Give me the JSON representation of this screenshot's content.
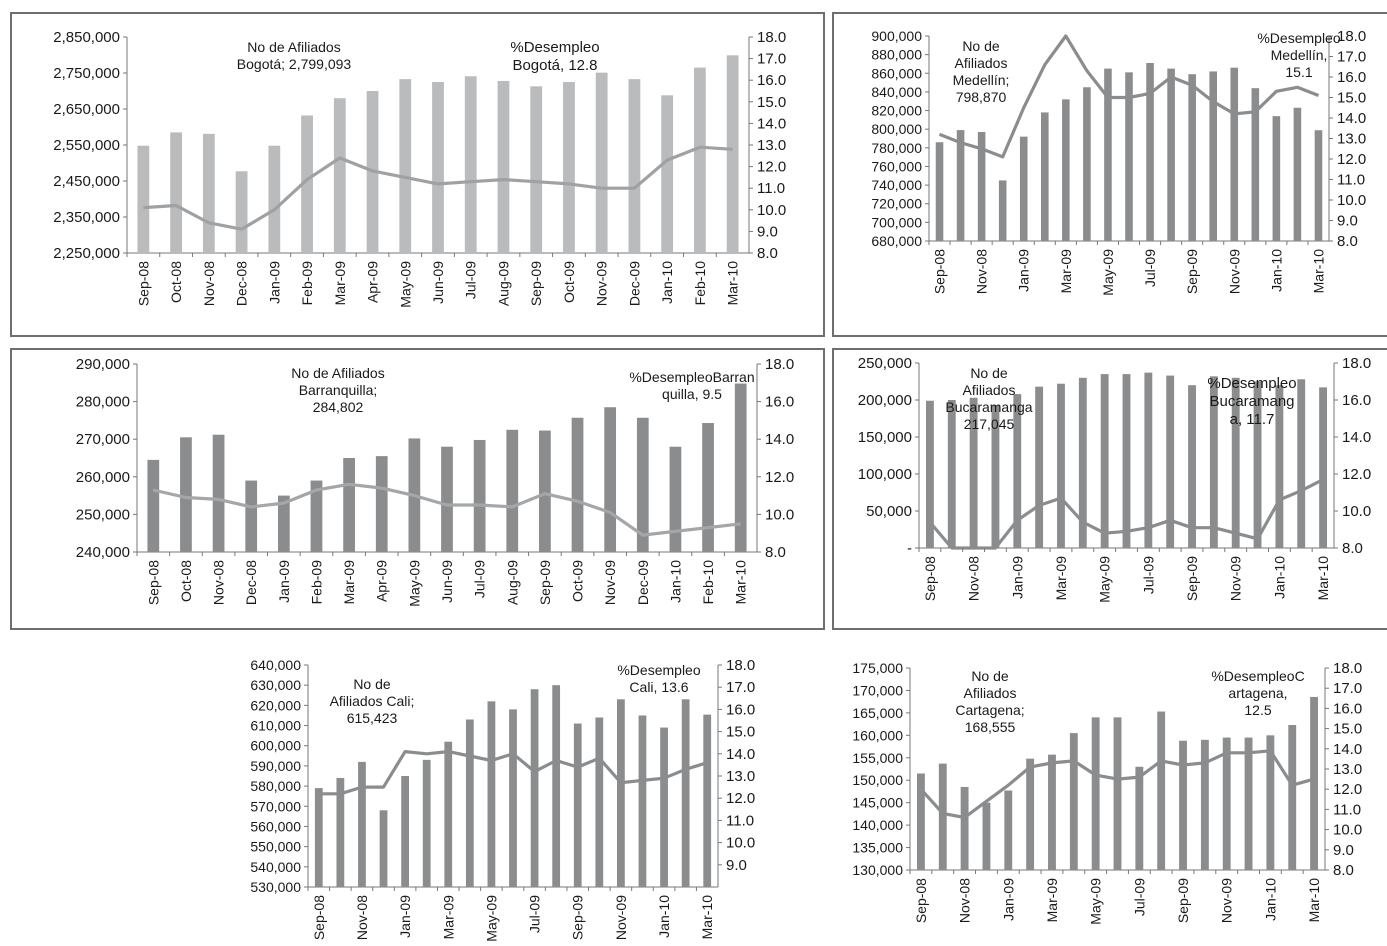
{
  "chart_data": [
    {
      "type": "bar+line",
      "categories": [
        "Sep-08",
        "Oct-08",
        "Nov-08",
        "Dec-08",
        "Jan-09",
        "Feb-09",
        "Mar-09",
        "Apr-09",
        "May-09",
        "Jun-09",
        "Jul-09",
        "Aug-09",
        "Sep-09",
        "Oct-09",
        "Nov-09",
        "Dec-09",
        "Jan-10",
        "Feb-10",
        "Mar-10"
      ],
      "series": [
        {
          "axis": "left",
          "values": [
            2548000,
            2585000,
            2581000,
            2477000,
            2548000,
            2632000,
            2680000,
            2700000,
            2733000,
            2725000,
            2741000,
            2728000,
            2713000,
            2725000,
            2751000,
            2733000,
            2688000,
            2765000,
            2799093
          ]
        },
        {
          "axis": "right",
          "values": [
            10.1,
            10.2,
            9.4,
            9.1,
            10.0,
            11.4,
            12.4,
            11.8,
            11.5,
            11.2,
            11.3,
            11.4,
            11.3,
            11.2,
            11.0,
            11.0,
            12.3,
            12.9,
            12.8
          ]
        }
      ],
      "ylim": [
        2250000,
        2850000
      ],
      "y2lim": [
        8.0,
        18.0
      ],
      "yticks": [
        "2,850,000",
        "2,750,000",
        "2,650,000",
        "2,550,000",
        "2,450,000",
        "2,350,000",
        "2,250,000"
      ],
      "y2ticks": [
        "18.0",
        "17.0",
        "16.0",
        "15.0",
        "14.0",
        "13.0",
        "12.0",
        "11.0",
        "10.0",
        "9.0",
        "8.0"
      ],
      "annotations": [
        {
          "lines": [
            "No de Afiliados",
            "Bogotá;  2,799,093"
          ]
        },
        {
          "lines": [
            "%Desempleo",
            "Bogotá,  12.8"
          ]
        }
      ],
      "bar_color": "#b9bbbd",
      "line_color": "#9fa1a3"
    },
    {
      "type": "bar+line",
      "categories": [
        "Sep-08",
        "Oct-08",
        "Nov-08",
        "Dec-08",
        "Jan-09",
        "Feb-09",
        "Mar-09",
        "Apr-09",
        "May-09",
        "Jun-09",
        "Jul-09",
        "Aug-09",
        "Sep-09",
        "Oct-09",
        "Nov-09",
        "Dec-09",
        "Jan-10",
        "Feb-10",
        "Mar-10"
      ],
      "tick_labels_every": 2,
      "series": [
        {
          "axis": "left",
          "values": [
            786000,
            799000,
            797000,
            745000,
            792000,
            818000,
            832000,
            845000,
            865000,
            861000,
            871000,
            865000,
            859000,
            862000,
            866000,
            844000,
            814000,
            823000,
            798870
          ]
        },
        {
          "axis": "right",
          "values": [
            13.2,
            12.8,
            12.5,
            12.1,
            14.5,
            16.6,
            18.0,
            16.3,
            15.0,
            15.0,
            15.2,
            16.0,
            15.6,
            14.8,
            14.2,
            14.3,
            15.3,
            15.5,
            15.1
          ]
        }
      ],
      "ylim": [
        680000,
        900000
      ],
      "y2lim": [
        8.0,
        18.0
      ],
      "yticks": [
        "900,000",
        "880,000",
        "860,000",
        "840,000",
        "820,000",
        "800,000",
        "780,000",
        "760,000",
        "740,000",
        "720,000",
        "700,000",
        "680,000"
      ],
      "y2ticks": [
        "18.0",
        "17.0",
        "16.0",
        "15.0",
        "14.0",
        "13.0",
        "12.0",
        "11.0",
        "10.0",
        "9.0",
        "8.0"
      ],
      "annotations": [
        {
          "lines": [
            "No de",
            "Afiliados",
            "Medellín;",
            "798,870"
          ]
        },
        {
          "lines": [
            "%Desempleo",
            "Medellín,",
            "15.1"
          ]
        }
      ],
      "bar_color": "#8a8c8e",
      "line_color": "#8a8c8e"
    },
    {
      "type": "bar+line",
      "categories": [
        "Sep-08",
        "Oct-08",
        "Nov-08",
        "Dec-08",
        "Jan-09",
        "Feb-09",
        "Mar-09",
        "Apr-09",
        "May-09",
        "Jun-09",
        "Jul-09",
        "Aug-09",
        "Sep-09",
        "Oct-09",
        "Nov-09",
        "Dec-09",
        "Jan-10",
        "Feb-10",
        "Mar-10"
      ],
      "series": [
        {
          "axis": "left",
          "values": [
            264500,
            270500,
            271200,
            259000,
            255000,
            259000,
            265000,
            265500,
            270200,
            268000,
            269800,
            272500,
            272300,
            275700,
            278500,
            275700,
            268000,
            274300,
            284802
          ]
        },
        {
          "axis": "right",
          "values": [
            11.3,
            10.9,
            10.8,
            10.4,
            10.6,
            11.3,
            11.6,
            11.4,
            11.0,
            10.5,
            10.5,
            10.4,
            11.1,
            10.7,
            10.1,
            8.9,
            9.1,
            9.3,
            9.5
          ]
        }
      ],
      "ylim": [
        240000,
        290000
      ],
      "y2lim": [
        8.0,
        18.0
      ],
      "yticks": [
        "290,000",
        "280,000",
        "270,000",
        "260,000",
        "250,000",
        "240,000"
      ],
      "y2ticks": [
        "18.0",
        "16.0",
        "14.0",
        "12.0",
        "10.0",
        "8.0"
      ],
      "annotations": [
        {
          "lines": [
            "No de Afiliados",
            "Barranquilla;",
            "284,802"
          ]
        },
        {
          "lines": [
            "%DesempleoBarran",
            "quilla,  9.5"
          ]
        }
      ],
      "bar_color": "#8a8c8e",
      "line_color": "#a4a6a8"
    },
    {
      "type": "bar+line",
      "categories": [
        "Sep-08",
        "Oct-08",
        "Nov-08",
        "Dec-08",
        "Jan-09",
        "Feb-09",
        "Mar-09",
        "Apr-09",
        "May-09",
        "Jun-09",
        "Jul-09",
        "Aug-09",
        "Sep-09",
        "Oct-09",
        "Nov-09",
        "Dec-09",
        "Jan-10",
        "Feb-10",
        "Mar-10"
      ],
      "tick_labels_every": 2,
      "series": [
        {
          "axis": "left",
          "values": [
            199000,
            200000,
            203000,
            193000,
            208000,
            218000,
            222000,
            230000,
            235000,
            235000,
            237000,
            233000,
            220000,
            232000,
            230000,
            225000,
            220000,
            228000,
            217045
          ]
        },
        {
          "axis": "right",
          "values": [
            9.4,
            7.9,
            7.9,
            7.9,
            9.5,
            10.3,
            10.7,
            9.4,
            8.8,
            8.9,
            9.1,
            9.5,
            9.1,
            9.1,
            8.8,
            8.5,
            10.6,
            11.1,
            11.7
          ]
        }
      ],
      "ylim": [
        0,
        250000
      ],
      "y2lim": [
        8.0,
        18.0
      ],
      "yticks": [
        "250,000",
        "200,000",
        "150,000",
        "100,000",
        "50,000",
        "-"
      ],
      "y2ticks": [
        "18.0",
        "16.0",
        "14.0",
        "12.0",
        "10.0",
        "8.0"
      ],
      "annotations": [
        {
          "lines": [
            "No de",
            "Afiliados",
            "Bucaramanga",
            "217,045"
          ]
        },
        {
          "lines": [
            "%Desempleo",
            "Bucaramang",
            "a,  11.7"
          ]
        }
      ],
      "bar_color": "#8a8c8e",
      "line_color": "#8a8c8e"
    },
    {
      "type": "bar+line",
      "categories": [
        "Sep-08",
        "Oct-08",
        "Nov-08",
        "Dec-08",
        "Jan-09",
        "Feb-09",
        "Mar-09",
        "Apr-09",
        "May-09",
        "Jun-09",
        "Jul-09",
        "Aug-09",
        "Sep-09",
        "Oct-09",
        "Nov-09",
        "Dec-09",
        "Jan-10",
        "Feb-10",
        "Mar-10"
      ],
      "tick_labels_every": 2,
      "series": [
        {
          "axis": "left",
          "values": [
            579000,
            584000,
            592000,
            568000,
            585000,
            593000,
            602000,
            613000,
            622000,
            618000,
            628000,
            630000,
            611000,
            614000,
            623000,
            615000,
            609000,
            623000,
            615423
          ]
        },
        {
          "axis": "right",
          "values": [
            12.2,
            12.2,
            12.5,
            12.5,
            14.1,
            14.0,
            14.1,
            13.9,
            13.7,
            14.0,
            13.2,
            13.7,
            13.4,
            13.8,
            12.7,
            12.8,
            12.9,
            13.3,
            13.6
          ]
        }
      ],
      "ylim": [
        530000,
        640000
      ],
      "y2lim": [
        8.0,
        18.0
      ],
      "yticks": [
        "640,000",
        "630,000",
        "620,000",
        "610,000",
        "600,000",
        "590,000",
        "580,000",
        "570,000",
        "560,000",
        "550,000",
        "540,000",
        "530,000"
      ],
      "y2ticks": [
        "18.0",
        "17.0",
        "16.0",
        "15.0",
        "14.0",
        "13.0",
        "12.0",
        "11.0",
        "10.0",
        "9.0"
      ],
      "annotations": [
        {
          "lines": [
            "No de",
            "Afiliados Cali;",
            "615,423"
          ]
        },
        {
          "lines": [
            "%Desempleo",
            "Cali,  13.6"
          ]
        }
      ],
      "bar_color": "#8a8c8e",
      "line_color": "#8a8c8e"
    },
    {
      "type": "bar+line",
      "categories": [
        "Sep-08",
        "Oct-08",
        "Nov-08",
        "Dec-08",
        "Jan-09",
        "Feb-09",
        "Mar-09",
        "Apr-09",
        "May-09",
        "Jun-09",
        "Jul-09",
        "Aug-09",
        "Sep-09",
        "Oct-09",
        "Nov-09",
        "Dec-09",
        "Jan-10",
        "Feb-10",
        "Mar-10"
      ],
      "tick_labels_every": 2,
      "series": [
        {
          "axis": "left",
          "values": [
            151500,
            153700,
            148500,
            145000,
            147700,
            154800,
            155700,
            160500,
            164000,
            164000,
            153000,
            165300,
            158800,
            159000,
            159500,
            159500,
            160000,
            162300,
            168555
          ]
        },
        {
          "axis": "right",
          "values": [
            12.0,
            10.8,
            10.6,
            11.4,
            12.2,
            13.1,
            13.3,
            13.4,
            12.7,
            12.5,
            12.6,
            13.4,
            13.2,
            13.3,
            13.8,
            13.8,
            13.9,
            12.2,
            12.5
          ]
        }
      ],
      "ylim": [
        130000,
        175000
      ],
      "y2lim": [
        8.0,
        18.0
      ],
      "yticks": [
        "175,000",
        "170,000",
        "165,000",
        "160,000",
        "155,000",
        "150,000",
        "145,000",
        "140,000",
        "135,000",
        "130,000"
      ],
      "y2ticks": [
        "18.0",
        "17.0",
        "16.0",
        "15.0",
        "14.0",
        "13.0",
        "12.0",
        "11.0",
        "10.0",
        "9.0",
        "8.0"
      ],
      "annotations": [
        {
          "lines": [
            "No de",
            "Afiliados",
            "Cartagena;",
            "168,555"
          ]
        },
        {
          "lines": [
            "%DesempleoC",
            "artagena,",
            "12.5"
          ]
        }
      ],
      "bar_color": "#8a8c8e",
      "line_color": "#8a8c8e"
    }
  ]
}
